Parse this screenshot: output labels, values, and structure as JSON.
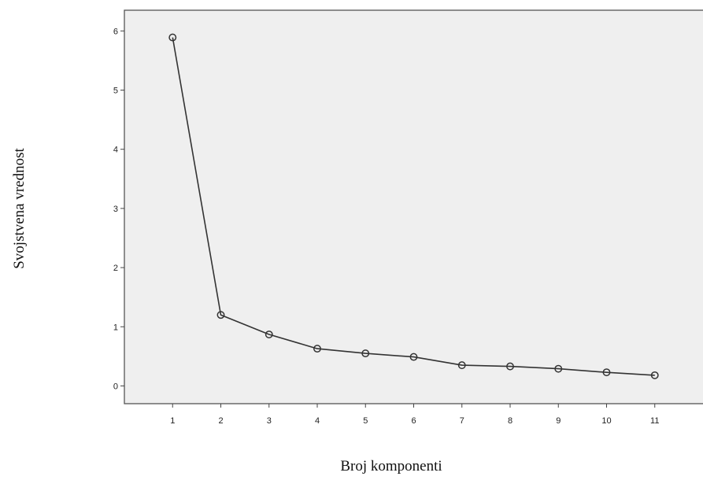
{
  "chart_data": {
    "type": "line",
    "title": "",
    "xlabel": "Broj komponenti",
    "ylabel": "Svojstvena vrednost",
    "categories": [
      "1",
      "2",
      "3",
      "4",
      "5",
      "6",
      "7",
      "8",
      "9",
      "10",
      "11"
    ],
    "x": [
      1,
      2,
      3,
      4,
      5,
      6,
      7,
      8,
      9,
      10,
      11
    ],
    "series": [
      {
        "values": [
          5.89,
          1.2,
          0.87,
          0.63,
          0.55,
          0.49,
          0.35,
          0.33,
          0.29,
          0.23,
          0.18
        ]
      }
    ],
    "yticks": [
      0,
      1,
      2,
      3,
      4,
      5,
      6
    ],
    "ylim": [
      -0.3,
      6.35
    ],
    "xlim": [
      0,
      12
    ],
    "grid": false,
    "marker": "open-circle",
    "colors": {
      "plot_background": "#efefef",
      "line": "#333333",
      "frame": "#555555"
    }
  }
}
